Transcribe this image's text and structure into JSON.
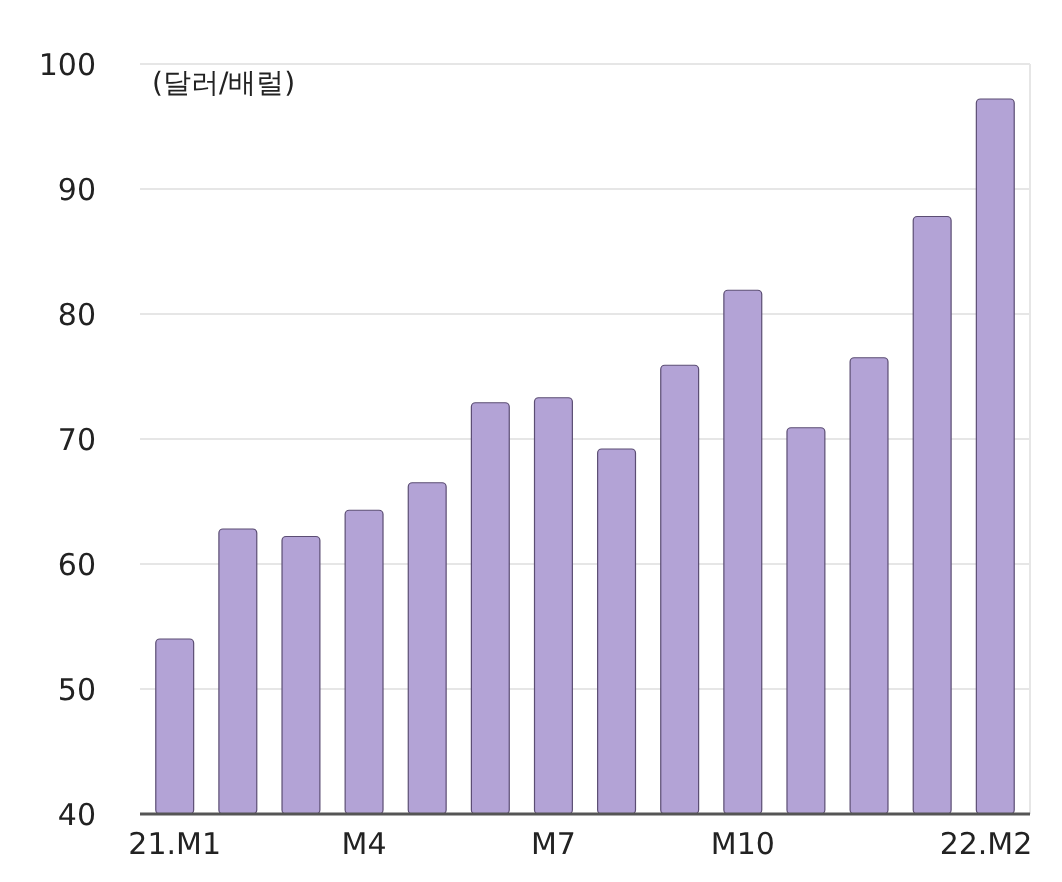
{
  "chart_data": {
    "type": "bar",
    "ylabel": "(달러/배럴)",
    "categories": [
      "21.M1",
      null,
      null,
      "M4",
      null,
      null,
      "M7",
      null,
      null,
      "M10",
      null,
      null,
      null,
      "22.M2"
    ],
    "values": [
      54.0,
      62.8,
      62.2,
      64.3,
      66.5,
      72.9,
      73.3,
      69.2,
      75.9,
      81.9,
      70.9,
      76.5,
      87.8,
      97.2
    ],
    "color": "#b3a3d6",
    "ylim": [
      40,
      100
    ],
    "yticks": [
      40,
      50,
      60,
      70,
      80,
      90,
      100
    ],
    "grid": "y"
  }
}
